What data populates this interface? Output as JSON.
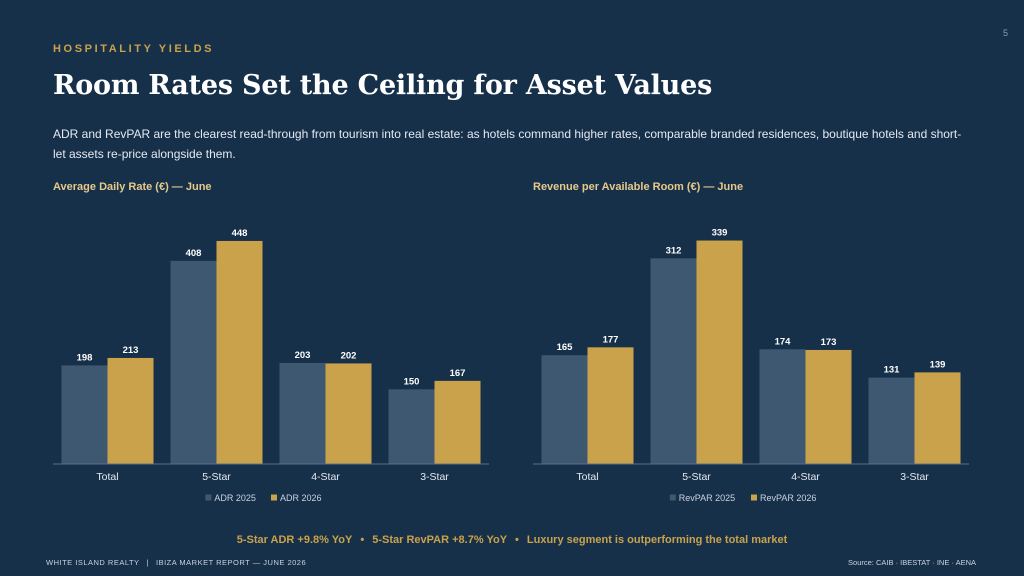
{
  "page_number": "5",
  "eyebrow": "HOSPITALITY YIELDS",
  "title": "Room Rates Set the Ceiling for Asset Values",
  "subtitle": "ADR and RevPAR are the clearest read-through from tourism into real estate: as hotels command higher rates, comparable branded residences, boutique hotels and short-let assets re-price alongside them.",
  "colors": {
    "series_2025": "#3f5872",
    "series_2026": "#c9a24b",
    "accent": "#c9a24b",
    "background": "#17304a"
  },
  "chart_data": [
    {
      "type": "bar",
      "title": "Average Daily Rate (€) — June",
      "categories": [
        "Total",
        "5-Star",
        "4-Star",
        "3-Star"
      ],
      "series": [
        {
          "name": "ADR 2025",
          "values": [
            198,
            408,
            203,
            150
          ]
        },
        {
          "name": "ADR 2026",
          "values": [
            213,
            448,
            202,
            167
          ]
        }
      ],
      "ylim": [
        0,
        470
      ],
      "grid": false,
      "legend": "bottom-center"
    },
    {
      "type": "bar",
      "title": "Revenue per Available Room (€) — June",
      "categories": [
        "Total",
        "5-Star",
        "4-Star",
        "3-Star"
      ],
      "series": [
        {
          "name": "RevPAR 2025",
          "values": [
            165,
            312,
            174,
            131
          ]
        },
        {
          "name": "RevPAR 2026",
          "values": [
            177,
            339,
            173,
            139
          ]
        }
      ],
      "ylim": [
        0,
        355
      ],
      "grid": false,
      "legend": "bottom-center"
    }
  ],
  "takeaways": [
    "5-Star ADR +9.8% YoY",
    "5-Star RevPAR +8.7% YoY",
    "Luxury segment is outperforming the total market"
  ],
  "takeaway_separator": "•",
  "footer": {
    "company": "WHITE ISLAND REALTY",
    "separator": "|",
    "report": "IBIZA MARKET REPORT — JUNE 2026",
    "source": "Source: CAIB · IBESTAT · INE · AENA"
  }
}
